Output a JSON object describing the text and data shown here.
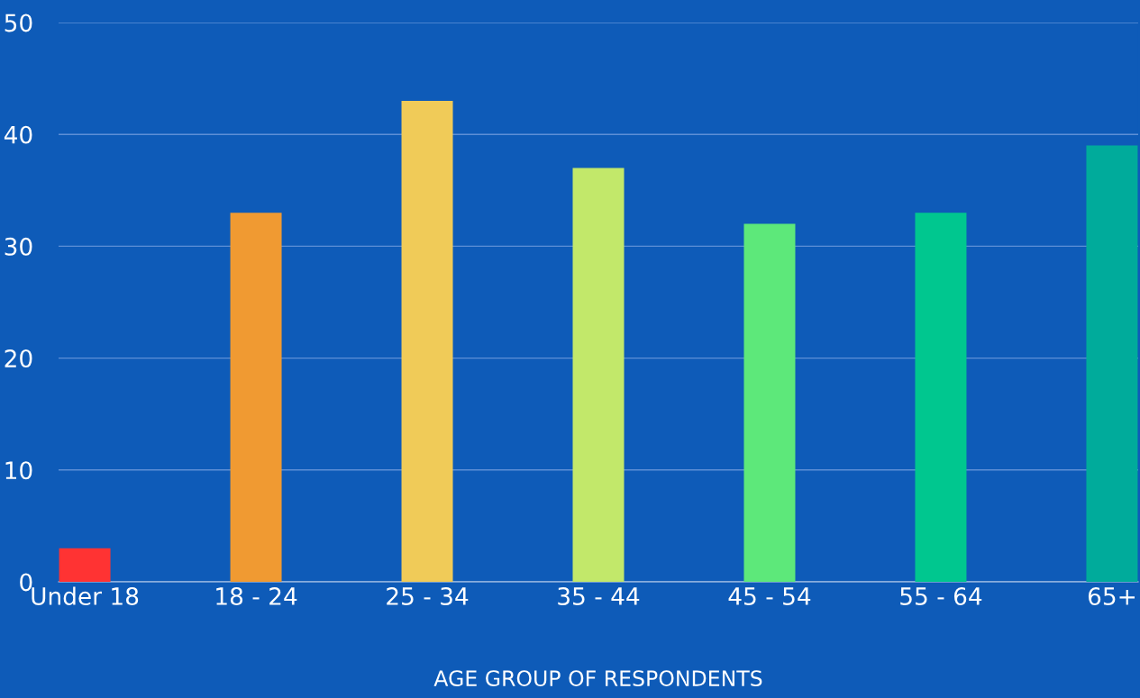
{
  "chart_data": {
    "type": "bar",
    "xlabel": "AGE GROUP OF RESPONDENTS",
    "categories": [
      "Under 18",
      "18 - 24",
      "25 - 34",
      "35 - 44",
      "45 - 54",
      "55 - 64",
      "65+"
    ],
    "values": [
      3,
      33,
      43,
      37,
      32,
      33,
      39
    ],
    "colors": [
      "#ff3333",
      "#f09a32",
      "#f0cb58",
      "#c2e86a",
      "#5de87a",
      "#00c78f",
      "#00ab9b"
    ],
    "ylim": [
      0,
      50
    ],
    "yticks": [
      0,
      10,
      20,
      30,
      40,
      50
    ],
    "grid": "y",
    "legend": false
  }
}
